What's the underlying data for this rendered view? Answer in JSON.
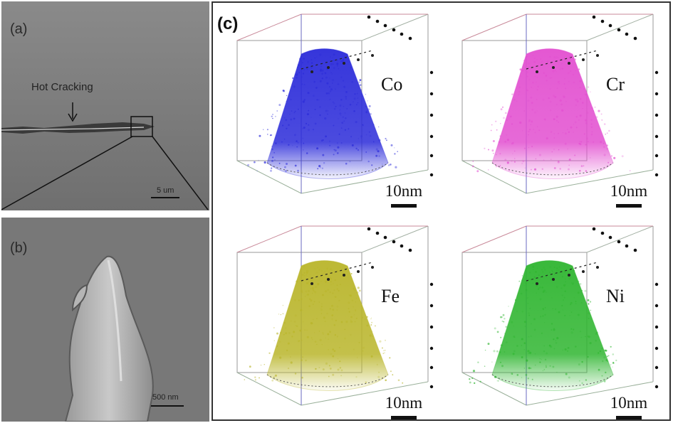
{
  "panels": {
    "a": {
      "label": "(a)",
      "annotation": "Hot Cracking",
      "scalebar": "5 um"
    },
    "b": {
      "label": "(b)",
      "scalebar": "500 nm"
    },
    "c": {
      "label": "(c)",
      "maps": [
        {
          "element": "Co",
          "color": "#2b2bd9",
          "scalebar": "10nm"
        },
        {
          "element": "Cr",
          "color": "#e24fd0",
          "scalebar": "10nm"
        },
        {
          "element": "Fe",
          "color": "#b9b52a",
          "scalebar": "10nm"
        },
        {
          "element": "Ni",
          "color": "#2fb530",
          "scalebar": "10nm"
        }
      ]
    }
  }
}
